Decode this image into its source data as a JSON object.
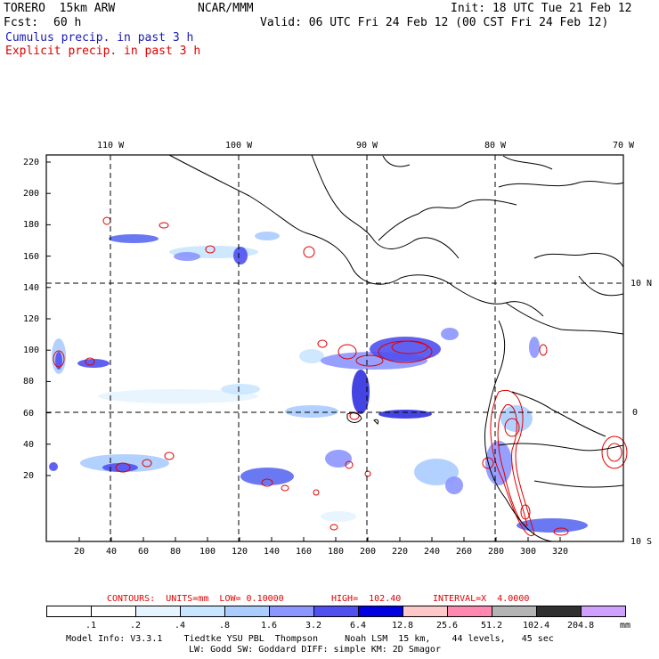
{
  "header": {
    "model": "TORERO  15km ARW",
    "org": "NCAR/MMM",
    "init": "Init: 18 UTC Tue 21 Feb 12",
    "fcst_label": "Fcst:",
    "fcst_value": "60 h",
    "valid": "Valid: 06 UTC Fri 24 Feb 12 (00 CST Fri 24 Feb 12)",
    "field1": "Cumulus precip. in past 3 h",
    "field2": "Explicit precip. in past 3 h"
  },
  "map": {
    "top_lon_labels": [
      "110 W",
      "100 W",
      "90 W",
      "80 W",
      "70 W"
    ],
    "right_lat_labels": [
      "10 N",
      "0",
      "10 S"
    ],
    "y_ticks": [
      "220",
      "200",
      "180",
      "160",
      "140",
      "120",
      "100",
      "80",
      "60",
      "40",
      "20"
    ],
    "x_ticks": [
      "20",
      "40",
      "60",
      "80",
      "100",
      "120",
      "140",
      "160",
      "180",
      "200",
      "220",
      "240",
      "260",
      "280",
      "300",
      "320"
    ]
  },
  "footer": {
    "contours_label": "CONTOURS:  UNITS=mm  LOW= 0.10000",
    "high": "HIGH=  102.40",
    "interval": "INTERVAL=X  4.0000",
    "colorbar_labels": [
      ".1",
      ".2",
      ".4",
      ".8",
      "1.6",
      "3.2",
      "6.4",
      "12.8",
      "25.6",
      "51.2",
      "102.4",
      "204.8"
    ],
    "units": "mm",
    "colorbar_colors": [
      "#ffffff",
      "#ffffff",
      "#e6f4ff",
      "#c8e6ff",
      "#aaccff",
      "#8c96ff",
      "#5050f0",
      "#0000e0",
      "#ffc8c8",
      "#ff88b0",
      "#b4b4b4",
      "#303030",
      "#d0a0ff"
    ],
    "model_info_1": "Model Info: V3.3.1    Tiedtke YSU PBL  Thompson     Noah LSM  15 km,    44 levels,   45 sec",
    "model_info_2": "LW: Godd SW: Goddard DIFF: simple KM: 2D Smagor"
  }
}
